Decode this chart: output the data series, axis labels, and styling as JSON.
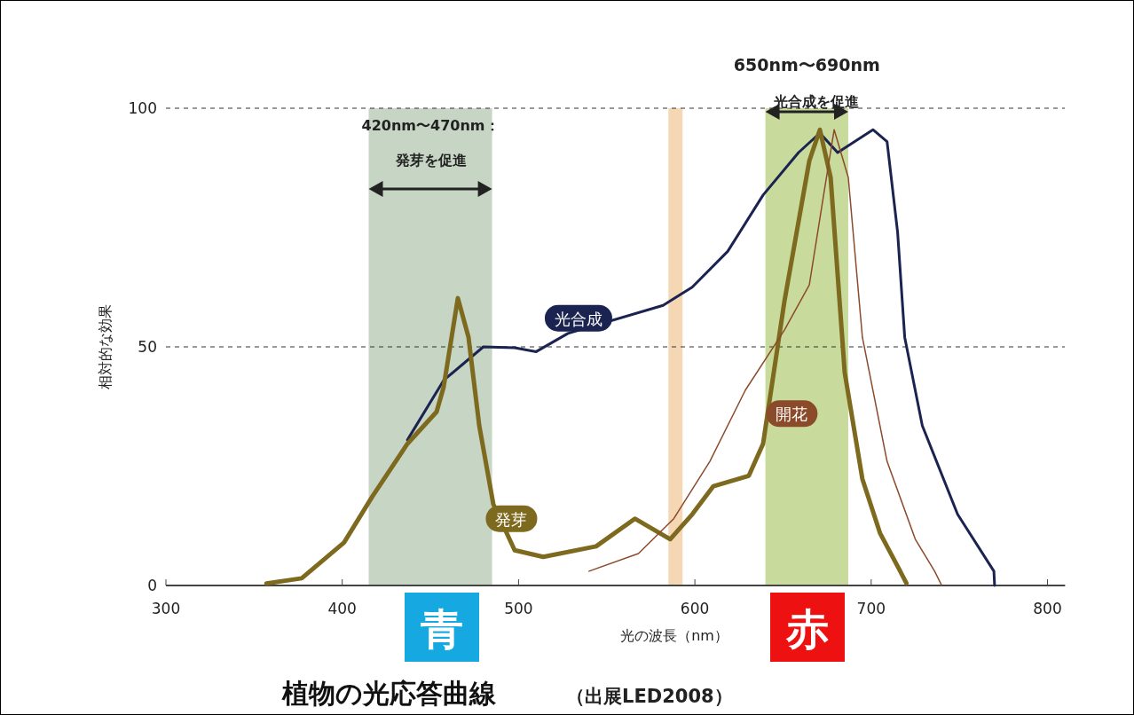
{
  "chart_data": {
    "type": "line",
    "title": "植物の光応答曲線",
    "xlabel": "光の波長（nm）",
    "ylabel": "相対的な効果",
    "annotations": [
      "青",
      "赤",
      "（出展LED2008）",
      "発芽を促進",
      "光合成を促進"
    ],
    "xlim": [
      300,
      810
    ],
    "ylim": [
      0,
      100
    ],
    "xticks": [
      300,
      400,
      500,
      600,
      700,
      800
    ],
    "yticks": [
      0,
      50,
      100
    ],
    "grid": "y",
    "legend": false,
    "line_style": "solid",
    "marker": "none",
    "bands": [
      {
        "axis": "x",
        "from": 415,
        "to": 485,
        "label": "420nm〜470nm：",
        "color": "#b3c7b0"
      },
      {
        "axis": "x",
        "from": 585,
        "to": 593,
        "color": "#f3c99a"
      },
      {
        "axis": "x",
        "from": 640,
        "to": 687,
        "label": "650nm〜690nm",
        "color": "#b6cf7c"
      }
    ],
    "series": [
      {
        "name": "光合成",
        "color": "#1b2350",
        "x": [
          437,
          457.5,
          480,
          497.8,
          510,
          528,
          582,
          598.5,
          618.6,
          638.7,
          658.8,
          670.9,
          681,
          701,
          709,
          715,
          719,
          729,
          749,
          769.6,
          770
        ],
        "values": [
          30.5,
          43,
          50,
          49.8,
          49,
          52.8,
          58.7,
          62.5,
          70,
          81.8,
          90.7,
          94.8,
          90.7,
          95.5,
          93,
          74,
          52,
          33.5,
          14.9,
          3,
          0
        ]
      },
      {
        "name": "発芽",
        "color": "#7d6a1e",
        "x": [
          357,
          377,
          401,
          417,
          437,
          453.5,
          457.5,
          465.6,
          471.6,
          477.7,
          485.7,
          497.8,
          514,
          544,
          566,
          586,
          598.5,
          610.5,
          630.6,
          638.7,
          650.8,
          664.9,
          670.9,
          677,
          685,
          695,
          705,
          716,
          720
        ],
        "values": [
          0.4,
          1.5,
          9,
          18.6,
          29.7,
          36.4,
          41.6,
          60.2,
          52,
          33.5,
          17,
          7.4,
          6,
          8.2,
          14,
          9.7,
          14.9,
          20.8,
          23,
          29.7,
          59.5,
          89,
          95.5,
          85.5,
          44.6,
          22.3,
          11,
          3.3,
          0.5
        ]
      },
      {
        "name": "開花",
        "color": "#8b4a2a",
        "x": [
          540,
          568,
          588,
          608.5,
          628.6,
          650.8,
          664.9,
          673,
          679,
          687,
          695,
          709,
          725,
          736,
          740
        ],
        "values": [
          3,
          6.7,
          14,
          26,
          40.9,
          53.5,
          63,
          81.8,
          95.5,
          85.5,
          52,
          26,
          9.7,
          3,
          0
        ]
      }
    ]
  }
}
